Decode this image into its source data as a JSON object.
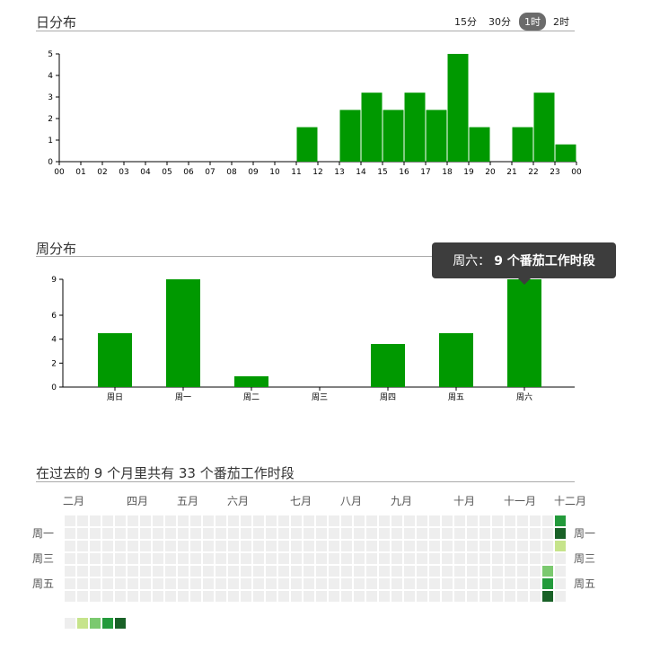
{
  "daily": {
    "title": "日分布",
    "granularity": [
      "15分",
      "30分",
      "1时",
      "2时"
    ],
    "selected_granularity": "1时"
  },
  "weekly": {
    "title": "周分布",
    "tooltip": {
      "label": "周六：",
      "value": "9 个番茄工作时段"
    }
  },
  "heatmap": {
    "title": "在过去的 9 个月里共有 33 个番茄工作时段",
    "months": [
      "二月",
      "四月",
      "五月",
      "六月",
      "七月",
      "八月",
      "九月",
      "十月",
      "十一月",
      "十二月"
    ],
    "weekdays": [
      "周一",
      "周三",
      "周五"
    ],
    "colors": {
      "empty": "#eeeeee",
      "l1": "#c6e48b",
      "l2": "#7bc96f",
      "l3": "#239a3b",
      "l4": "#196127"
    }
  },
  "chart_data": [
    {
      "type": "bar",
      "title": "日分布",
      "categories": [
        "00",
        "01",
        "02",
        "03",
        "04",
        "05",
        "06",
        "07",
        "08",
        "09",
        "10",
        "11",
        "12",
        "13",
        "14",
        "15",
        "16",
        "17",
        "18",
        "19",
        "20",
        "21",
        "22",
        "23"
      ],
      "values": [
        0,
        0,
        0,
        0,
        0,
        0,
        0,
        0,
        0,
        0,
        0,
        1.6,
        0,
        2.4,
        3.2,
        2.4,
        3.2,
        2.4,
        5,
        1.6,
        0,
        1.6,
        3.2,
        0.8
      ],
      "xticks": [
        "00",
        "01",
        "02",
        "03",
        "04",
        "05",
        "06",
        "07",
        "08",
        "09",
        "10",
        "11",
        "12",
        "13",
        "14",
        "15",
        "16",
        "17",
        "18",
        "19",
        "20",
        "21",
        "22",
        "23",
        "00"
      ],
      "yticks": [
        0,
        1,
        2,
        3,
        4,
        5
      ],
      "ylim": [
        0,
        5
      ],
      "color": "#009900"
    },
    {
      "type": "bar",
      "title": "周分布",
      "categories": [
        "周日",
        "周一",
        "周二",
        "周三",
        "周四",
        "周五",
        "周六"
      ],
      "values": [
        4.5,
        9,
        0.9,
        0,
        3.6,
        4.5,
        9
      ],
      "yticks": [
        0,
        2,
        4,
        6,
        9
      ],
      "ylim": [
        0,
        9
      ],
      "color": "#009900"
    },
    {
      "type": "heatmap",
      "title": "在过去的 9 个月里共有 33 个番茄工作时段",
      "weeks": 40,
      "rows": 7,
      "active": [
        {
          "week": 39,
          "day": 0,
          "level": 3
        },
        {
          "week": 39,
          "day": 1,
          "level": 4
        },
        {
          "week": 39,
          "day": 2,
          "level": 1
        },
        {
          "week": 38,
          "day": 4,
          "level": 2
        },
        {
          "week": 38,
          "day": 5,
          "level": 3
        },
        {
          "week": 38,
          "day": 6,
          "level": 4
        }
      ],
      "legend_levels": [
        0,
        1,
        2,
        3,
        4
      ]
    }
  ]
}
